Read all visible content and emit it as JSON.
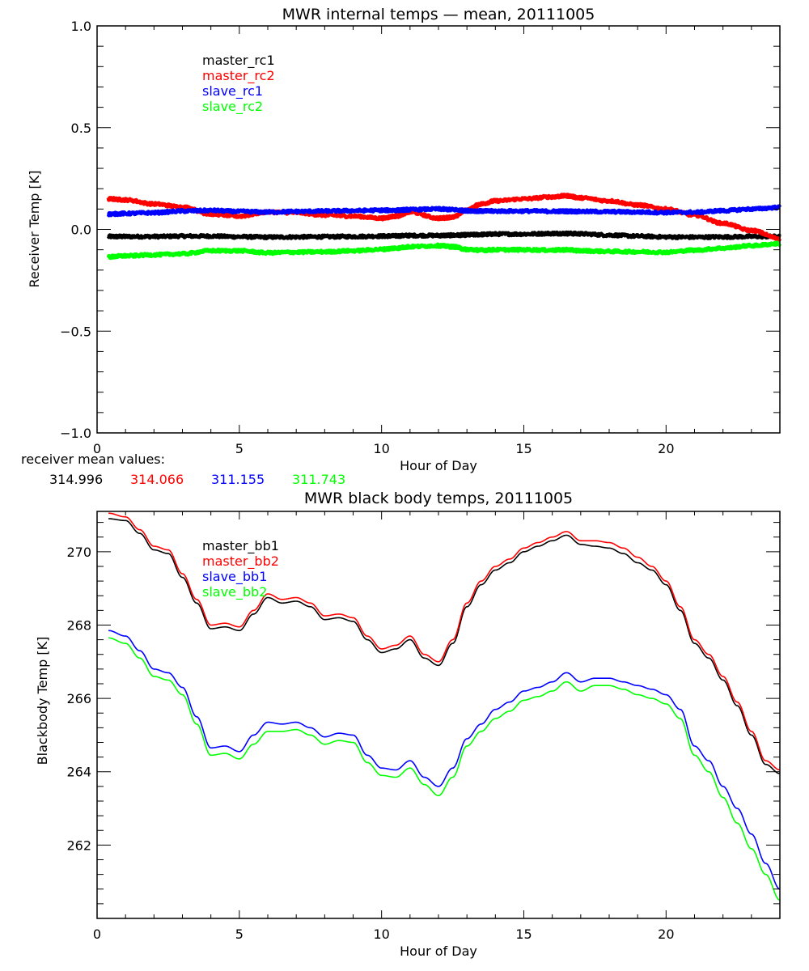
{
  "chart_data": [
    {
      "type": "line",
      "title": "MWR internal temps — mean, 20111005",
      "xlabel": "Hour of Day",
      "ylabel": "Receiver Temp [K]",
      "xlim": [
        0,
        24
      ],
      "ylim": [
        -1.0,
        1.0
      ],
      "xticks": [
        0,
        5,
        10,
        15,
        20
      ],
      "xtick_labels": [
        "0",
        "5",
        "10",
        "15",
        "20"
      ],
      "yticks": [
        1.0,
        0.5,
        0.0,
        -0.5,
        -1.0
      ],
      "ytick_labels": [
        "1.0",
        "0.5",
        "0.0",
        "−0.5",
        "−1.0"
      ],
      "grid": false,
      "legend_position": "top-left-inside",
      "x": [
        0.4,
        1,
        2,
        3,
        4,
        5,
        6,
        7,
        8,
        9,
        10,
        10.5,
        11,
        12,
        12.5,
        13,
        13.5,
        14,
        15,
        16,
        16.5,
        17,
        18,
        19,
        20,
        21,
        22,
        23,
        24
      ],
      "series": [
        {
          "name": "master_rc1",
          "color": "#000000",
          "values": [
            -0.035,
            -0.035,
            -0.035,
            -0.033,
            -0.033,
            -0.036,
            -0.038,
            -0.037,
            -0.036,
            -0.035,
            -0.033,
            -0.032,
            -0.03,
            -0.03,
            -0.029,
            -0.027,
            -0.025,
            -0.023,
            -0.023,
            -0.02,
            -0.02,
            -0.022,
            -0.028,
            -0.033,
            -0.037,
            -0.038,
            -0.037,
            -0.035,
            -0.035
          ]
        },
        {
          "name": "master_rc2",
          "color": "#ff0000",
          "values": [
            0.15,
            0.145,
            0.125,
            0.11,
            0.075,
            0.065,
            0.085,
            0.082,
            0.07,
            0.065,
            0.055,
            0.065,
            0.085,
            0.055,
            0.06,
            0.095,
            0.125,
            0.14,
            0.15,
            0.16,
            0.165,
            0.155,
            0.14,
            0.12,
            0.1,
            0.07,
            0.03,
            -0.005,
            -0.045
          ]
        },
        {
          "name": "slave_rc1",
          "color": "#0000ff",
          "values": [
            0.075,
            0.078,
            0.082,
            0.09,
            0.093,
            0.088,
            0.085,
            0.088,
            0.09,
            0.092,
            0.094,
            0.094,
            0.097,
            0.1,
            0.097,
            0.092,
            0.09,
            0.09,
            0.09,
            0.089,
            0.089,
            0.088,
            0.087,
            0.085,
            0.083,
            0.084,
            0.092,
            0.1,
            0.108
          ]
        },
        {
          "name": "slave_rc2",
          "color": "#00ff00",
          "values": [
            -0.135,
            -0.13,
            -0.125,
            -0.12,
            -0.105,
            -0.105,
            -0.115,
            -0.112,
            -0.11,
            -0.105,
            -0.098,
            -0.092,
            -0.085,
            -0.08,
            -0.085,
            -0.098,
            -0.102,
            -0.1,
            -0.1,
            -0.102,
            -0.1,
            -0.105,
            -0.108,
            -0.11,
            -0.112,
            -0.102,
            -0.092,
            -0.08,
            -0.07
          ]
        }
      ]
    },
    {
      "type": "line",
      "title": "MWR black body temps, 20111005",
      "xlabel": "Hour of Day",
      "ylabel": "Blackbody Temp [K]",
      "xlim": [
        0,
        24
      ],
      "ylim": [
        260.0,
        271.1
      ],
      "xticks": [
        0,
        5,
        10,
        15,
        20
      ],
      "xtick_labels": [
        "0",
        "5",
        "10",
        "15",
        "20"
      ],
      "yticks": [
        270,
        268,
        266,
        264,
        262
      ],
      "ytick_labels": [
        "270",
        "268",
        "266",
        "264",
        "262"
      ],
      "grid": false,
      "legend_position": "top-left-inside",
      "x": [
        0.4,
        1,
        1.5,
        2,
        2.5,
        3,
        3.5,
        4,
        4.5,
        5,
        5.5,
        6,
        6.5,
        7,
        7.5,
        8,
        8.5,
        9,
        9.5,
        10,
        10.5,
        11,
        11.5,
        12,
        12.5,
        13,
        13.5,
        14,
        14.5,
        15,
        15.5,
        16,
        16.5,
        17,
        17.5,
        18,
        18.5,
        19,
        19.5,
        20,
        20.5,
        21,
        21.5,
        22,
        22.5,
        23,
        23.5,
        24
      ],
      "series": [
        {
          "name": "master_bb1",
          "color": "#000000",
          "values": [
            270.9,
            270.85,
            270.5,
            270.05,
            269.95,
            269.3,
            268.6,
            267.9,
            267.95,
            267.85,
            268.3,
            268.75,
            268.6,
            268.65,
            268.5,
            268.15,
            268.2,
            268.1,
            267.6,
            267.25,
            267.35,
            267.6,
            267.1,
            266.9,
            267.5,
            268.5,
            269.1,
            269.5,
            269.7,
            270.0,
            270.15,
            270.3,
            270.45,
            270.2,
            270.15,
            270.1,
            269.95,
            269.7,
            269.5,
            269.1,
            268.4,
            267.5,
            267.1,
            266.5,
            265.8,
            265.0,
            264.2,
            263.95
          ]
        },
        {
          "name": "master_bb2",
          "color": "#ff0000",
          "values": [
            271.05,
            270.95,
            270.6,
            270.15,
            270.05,
            269.4,
            268.7,
            268.0,
            268.05,
            267.95,
            268.4,
            268.85,
            268.7,
            268.75,
            268.6,
            268.25,
            268.3,
            268.2,
            267.7,
            267.35,
            267.45,
            267.7,
            267.2,
            267.0,
            267.6,
            268.6,
            269.2,
            269.6,
            269.8,
            270.1,
            270.25,
            270.4,
            270.55,
            270.3,
            270.3,
            270.25,
            270.1,
            269.85,
            269.6,
            269.2,
            268.5,
            267.6,
            267.2,
            266.6,
            265.9,
            265.1,
            264.3,
            264.05
          ]
        },
        {
          "name": "slave_bb1",
          "color": "#0000ff",
          "values": [
            267.85,
            267.7,
            267.3,
            266.8,
            266.7,
            266.3,
            265.5,
            264.65,
            264.7,
            264.55,
            265.0,
            265.35,
            265.3,
            265.35,
            265.2,
            264.95,
            265.05,
            265.0,
            264.45,
            264.1,
            264.05,
            264.3,
            263.85,
            263.6,
            264.1,
            264.9,
            265.3,
            265.7,
            265.9,
            266.2,
            266.3,
            266.45,
            266.7,
            266.45,
            266.55,
            266.55,
            266.45,
            266.35,
            266.25,
            266.1,
            265.7,
            264.7,
            264.3,
            263.6,
            263.0,
            262.3,
            261.5,
            260.8
          ]
        },
        {
          "name": "slave_bb2",
          "color": "#00ff00",
          "values": [
            267.65,
            267.5,
            267.1,
            266.6,
            266.5,
            266.1,
            265.3,
            264.45,
            264.5,
            264.35,
            264.75,
            265.1,
            265.1,
            265.15,
            265.0,
            264.75,
            264.85,
            264.8,
            264.25,
            263.9,
            263.85,
            264.1,
            263.65,
            263.35,
            263.85,
            264.7,
            265.1,
            265.45,
            265.65,
            265.95,
            266.05,
            266.2,
            266.45,
            266.2,
            266.35,
            266.35,
            266.25,
            266.1,
            266.0,
            265.85,
            265.45,
            264.45,
            264.0,
            263.3,
            262.6,
            261.9,
            261.2,
            260.5
          ]
        }
      ]
    }
  ],
  "annotation": {
    "label": "receiver mean values:",
    "values": [
      {
        "text": "314.996",
        "color": "#000000"
      },
      {
        "text": "314.066",
        "color": "#ff0000"
      },
      {
        "text": "311.155",
        "color": "#0000ff"
      },
      {
        "text": "311.743",
        "color": "#00ff00"
      }
    ]
  }
}
